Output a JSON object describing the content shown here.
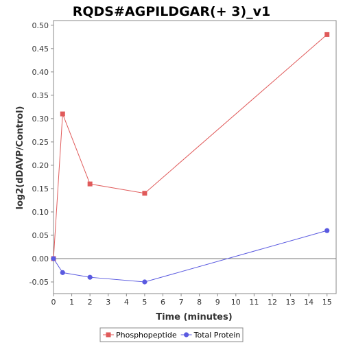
{
  "chart_data": {
    "type": "line",
    "title": "RQDS#AGPILDGAR(+ 3)_v1",
    "xlabel": "Time (minutes)",
    "ylabel": "log2(dDAVP/Control)",
    "xlim": [
      0,
      15.5
    ],
    "ylim": [
      -0.075,
      0.51
    ],
    "x_ticks": [
      0,
      1,
      2,
      3,
      4,
      5,
      6,
      7,
      8,
      9,
      10,
      11,
      12,
      13,
      14,
      15
    ],
    "y_ticks": [
      -0.05,
      0.0,
      0.05,
      0.1,
      0.15,
      0.2,
      0.25,
      0.3,
      0.35,
      0.4,
      0.45,
      0.5
    ],
    "y_tick_labels": [
      "-0.05",
      "0.00",
      "0.05",
      "0.10",
      "0.15",
      "0.20",
      "0.25",
      "0.30",
      "0.35",
      "0.40",
      "0.45",
      "0.50"
    ],
    "zero_line": true,
    "grid": false,
    "legend_position": "bottom-center",
    "series": [
      {
        "name": "Phosphopeptide",
        "color": "#e05a5a",
        "marker": "square",
        "x": [
          0,
          0.5,
          2,
          5,
          15
        ],
        "y": [
          0.0,
          0.31,
          0.16,
          0.14,
          0.48
        ]
      },
      {
        "name": "Total Protein",
        "color": "#5a5ae0",
        "marker": "circle",
        "x": [
          0,
          0.5,
          2,
          5,
          15
        ],
        "y": [
          0.0,
          -0.03,
          -0.04,
          -0.05,
          0.06
        ]
      }
    ]
  }
}
